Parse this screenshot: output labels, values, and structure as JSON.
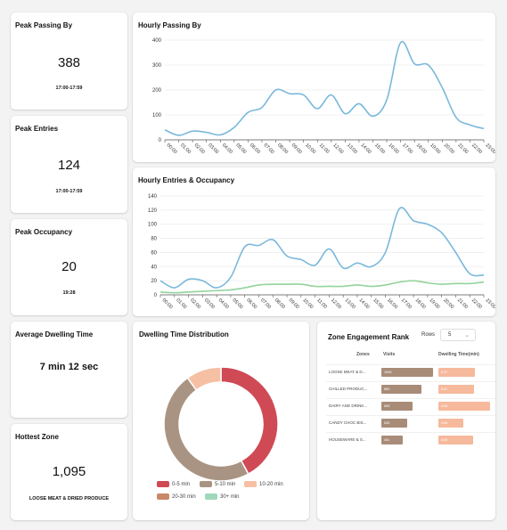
{
  "kpis": {
    "peak_passing": {
      "title": "Peak Passing By",
      "value": "388",
      "sub": "17:00-17:59"
    },
    "peak_entries": {
      "title": "Peak Entries",
      "value": "124",
      "sub": "17:00-17:59"
    },
    "peak_occupancy": {
      "title": "Peak Occupancy",
      "value": "20",
      "sub": "19:28"
    },
    "avg_dwelling": {
      "title": "Average Dwelling Time",
      "value": "7 min 12 sec"
    },
    "hottest_zone": {
      "title": "Hottest Zone",
      "value": "1,095",
      "sub": "LOOSE MEAT & DRIED PRODUCE"
    }
  },
  "passing_panel": {
    "title": "Hourly Passing By"
  },
  "entries_panel": {
    "title": "Hourly Entries & Occupancy"
  },
  "dwelling_panel": {
    "title": "Dwelling Time Distribution"
  },
  "rank_panel": {
    "title": "Zone Engagement Rank",
    "rows_label": "Rows",
    "rows_value": "5",
    "columns": [
      "Zones",
      "Visits",
      "Dwelling Time(min)"
    ],
    "rows": [
      {
        "zone": "LOOSE MEAT & D...",
        "visits_label": "1095",
        "dwell_label": "6.97"
      },
      {
        "zone": "CHILLED PRODUC...",
        "visits_label": "850",
        "dwell_label": "6.81"
      },
      {
        "zone": "DAIRY AND DRINK...",
        "visits_label": "659",
        "dwell_label": "9.80"
      },
      {
        "zone": "CANDY CHOC BIS...",
        "visits_label": "539",
        "dwell_label": "4.80"
      },
      {
        "zone": "HOUSEWARE & S...",
        "visits_label": "461",
        "dwell_label": "6.65"
      }
    ],
    "colors": {
      "visits": "#a88c78",
      "dwell": "#f6b99c"
    }
  },
  "chart_data": [
    {
      "type": "line",
      "x": [
        "00:00",
        "01:00",
        "02:00",
        "03:00",
        "04:00",
        "05:00",
        "06:00",
        "07:00",
        "08:00",
        "09:00",
        "10:00",
        "11:00",
        "12:00",
        "13:00",
        "14:00",
        "15:00",
        "16:00",
        "17:00",
        "18:00",
        "19:00",
        "20:00",
        "21:00",
        "22:00",
        "23:00"
      ],
      "series": [
        {
          "values": [
            40,
            18,
            35,
            30,
            20,
            50,
            110,
            130,
            200,
            185,
            180,
            125,
            180,
            105,
            145,
            95,
            160,
            390,
            305,
            300,
            210,
            90,
            60,
            45
          ],
          "color": "#7ab8dc"
        }
      ],
      "ylim": [
        0,
        400
      ],
      "yticks": [
        0,
        100,
        200,
        300,
        400
      ],
      "grid": true
    },
    {
      "type": "line",
      "x": [
        "00:00",
        "01:00",
        "02:00",
        "03:00",
        "04:00",
        "05:00",
        "06:00",
        "07:00",
        "08:00",
        "09:00",
        "10:00",
        "11:00",
        "12:00",
        "13:00",
        "14:00",
        "15:00",
        "16:00",
        "17:00",
        "18:00",
        "19:00",
        "20:00",
        "21:00",
        "22:00",
        "23:00"
      ],
      "series": [
        {
          "values": [
            20,
            10,
            22,
            20,
            10,
            25,
            68,
            70,
            78,
            55,
            50,
            42,
            65,
            38,
            45,
            40,
            60,
            122,
            105,
            100,
            88,
            60,
            30,
            28
          ],
          "color": "#7ab8dc"
        },
        {
          "values": [
            4,
            3,
            4,
            5,
            6,
            7,
            10,
            14,
            15,
            15,
            15,
            12,
            12,
            12,
            14,
            12,
            14,
            18,
            20,
            17,
            15,
            16,
            16,
            18
          ],
          "color": "#93d39c"
        }
      ],
      "ylim": [
        0,
        140
      ],
      "yticks": [
        0,
        20,
        40,
        60,
        80,
        100,
        120,
        140
      ],
      "grid": true
    },
    {
      "type": "pie",
      "categories": [
        "0-5 min",
        "5-10 min",
        "10-20 min",
        "20-30 min",
        "30+ min"
      ],
      "values": [
        42,
        48,
        10,
        0,
        0
      ],
      "colors": [
        "#cf4a55",
        "#a99483",
        "#f6c0a4",
        "#c98868",
        "#9fd8bb"
      ]
    },
    {
      "type": "bar",
      "categories": [
        "LOOSE MEAT & D...",
        "CHILLED PRODUC...",
        "DAIRY AND DRINK...",
        "CANDY CHOC BIS...",
        "HOUSEWARE & S..."
      ],
      "series": [
        {
          "name": "Visits",
          "values": [
            1095,
            850,
            659,
            539,
            461
          ]
        },
        {
          "name": "Dwelling Time(min)",
          "values": [
            6.97,
            6.81,
            9.8,
            4.8,
            6.65
          ]
        }
      ]
    }
  ]
}
